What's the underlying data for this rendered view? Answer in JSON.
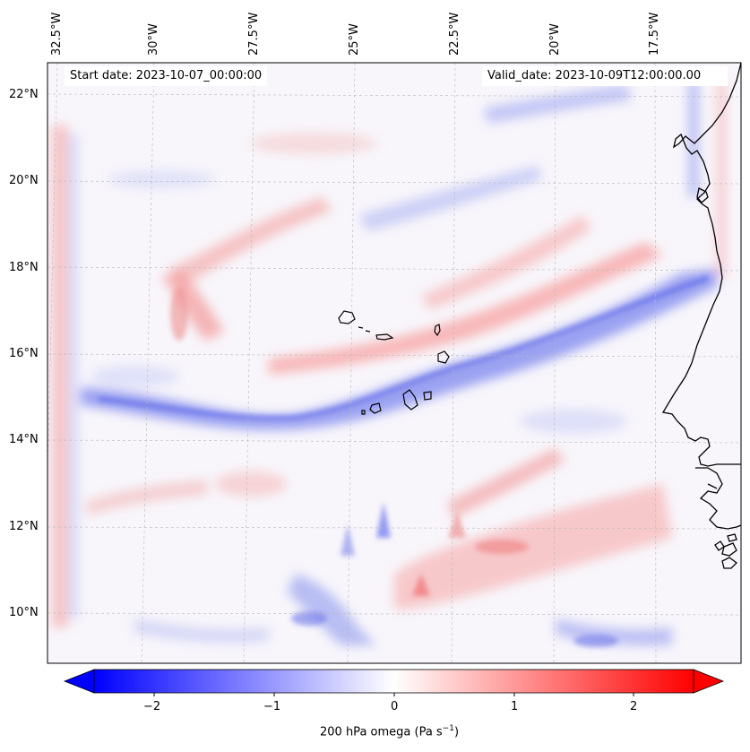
{
  "map": {
    "start_date_text": "Start date: 2023-10-07_00:00:00",
    "valid_date_text": "Valid_date: 2023-10-09T12:00:00.00",
    "lat_labels": [
      "22°N",
      "20°N",
      "18°N",
      "16°N",
      "14°N",
      "12°N",
      "10°N"
    ],
    "lon_labels": [
      "32.5°W",
      "30°W",
      "27.5°W",
      "25°W",
      "22.5°W",
      "20°W",
      "17.5°W"
    ],
    "field": "omega",
    "level": "200 hPa"
  },
  "colorbar": {
    "label_main": "200 hPa omega (Pa s",
    "label_sup": "−1",
    "label_end": ")",
    "ticks": [
      "−2",
      "−1",
      "0",
      "1",
      "2"
    ],
    "range": [
      -2.6,
      2.6
    ],
    "colors": {
      "negative": "#0000ff",
      "zero": "#ffffff",
      "positive": "#ff0000"
    }
  }
}
